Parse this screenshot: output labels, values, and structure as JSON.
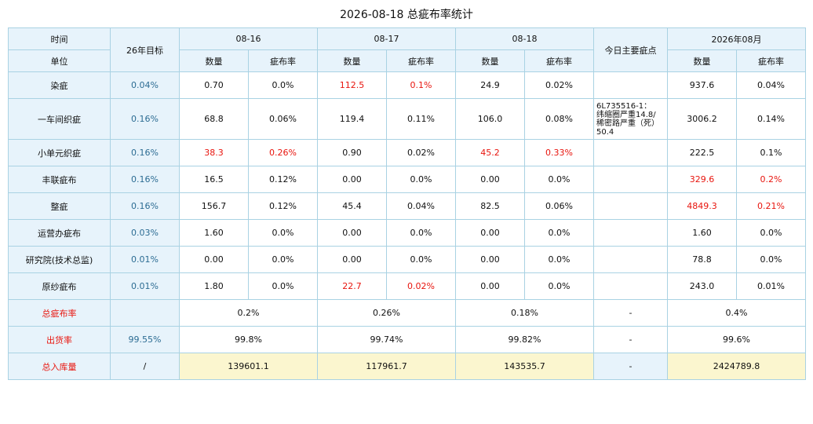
{
  "title": "2026-08-18 总疵布率统计",
  "header": {
    "time_label": "时间",
    "unit_label": "单位",
    "target_label": "26年目标",
    "days": [
      "08-16",
      "08-17",
      "08-18"
    ],
    "main_defect_label": "今日主要疵点",
    "month_label": "2026年08月",
    "qty_label": "数量",
    "rate_label": "疵布率"
  },
  "rows": [
    {
      "unit": "染疵",
      "target": "0.04%",
      "d1_qty": "0.70",
      "d1_rate": "0.0%",
      "d2_qty": "112.5",
      "d2_rate": "0.1%",
      "d3_qty": "24.9",
      "d3_rate": "0.02%",
      "note": "",
      "m_qty": "937.6",
      "m_rate": "0.04%"
    },
    {
      "unit": "一车间织疵",
      "target": "0.16%",
      "d1_qty": "68.8",
      "d1_rate": "0.06%",
      "d2_qty": "119.4",
      "d2_rate": "0.11%",
      "d3_qty": "106.0",
      "d3_rate": "0.08%",
      "note": "6L735516-1：\n纬缩圈严重14.8/\n稀密路严重（死）\n50.4",
      "m_qty": "3006.2",
      "m_rate": "0.14%"
    },
    {
      "unit": "小单元织疵",
      "target": "0.16%",
      "d1_qty": "38.3",
      "d1_rate": "0.26%",
      "d2_qty": "0.90",
      "d2_rate": "0.02%",
      "d3_qty": "45.2",
      "d3_rate": "0.33%",
      "note": "",
      "m_qty": "222.5",
      "m_rate": "0.1%"
    },
    {
      "unit": "丰联疵布",
      "target": "0.16%",
      "d1_qty": "16.5",
      "d1_rate": "0.12%",
      "d2_qty": "0.00",
      "d2_rate": "0.0%",
      "d3_qty": "0.00",
      "d3_rate": "0.0%",
      "note": "",
      "m_qty": "329.6",
      "m_rate": "0.2%"
    },
    {
      "unit": "整疵",
      "target": "0.16%",
      "d1_qty": "156.7",
      "d1_rate": "0.12%",
      "d2_qty": "45.4",
      "d2_rate": "0.04%",
      "d3_qty": "82.5",
      "d3_rate": "0.06%",
      "note": "",
      "m_qty": "4849.3",
      "m_rate": "0.21%"
    },
    {
      "unit": "运营办疵布",
      "target": "0.03%",
      "d1_qty": "1.60",
      "d1_rate": "0.0%",
      "d2_qty": "0.00",
      "d2_rate": "0.0%",
      "d3_qty": "0.00",
      "d3_rate": "0.0%",
      "note": "",
      "m_qty": "1.60",
      "m_rate": "0.0%"
    },
    {
      "unit": "研究院(技术总监)",
      "target": "0.01%",
      "d1_qty": "0.00",
      "d1_rate": "0.0%",
      "d2_qty": "0.00",
      "d2_rate": "0.0%",
      "d3_qty": "0.00",
      "d3_rate": "0.0%",
      "note": "",
      "m_qty": "78.8",
      "m_rate": "0.0%"
    },
    {
      "unit": "原纱疵布",
      "target": "0.01%",
      "d1_qty": "1.80",
      "d1_rate": "0.0%",
      "d2_qty": "22.7",
      "d2_rate": "0.02%",
      "d3_qty": "0.00",
      "d3_rate": "0.0%",
      "note": "",
      "m_qty": "243.0",
      "m_rate": "0.01%"
    }
  ],
  "totals": {
    "defect_rate": {
      "label": "总疵布率",
      "target": "",
      "d1": "0.2%",
      "d2": "0.26%",
      "d3": "0.18%",
      "note": "-",
      "month": "0.4%"
    },
    "shipping_rate": {
      "label": "出货率",
      "target": "99.55%",
      "d1": "99.8%",
      "d2": "99.74%",
      "d3": "99.82%",
      "note": "-",
      "month": "99.6%"
    },
    "inbound": {
      "label": "总入库量",
      "target": "/",
      "d1": "139601.1",
      "d2": "117961.7",
      "d3": "143535.7",
      "note": "-",
      "month": "2424789.8"
    }
  },
  "colors": {
    "header_bg": "#e7f3fb",
    "border": "#a9d2e3",
    "highlight_red": "#e8150e",
    "target_text": "#2c6c93",
    "sum_bg": "#fbf6cf"
  }
}
